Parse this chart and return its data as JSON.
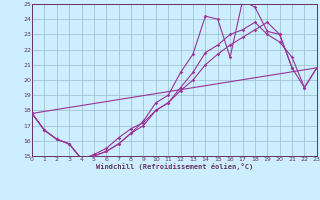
{
  "title": "",
  "xlabel": "Windchill (Refroidissement éolien,°C)",
  "bg_color": "#cceeff",
  "line_color": "#993399",
  "grid_color": "#99bbcc",
  "axis_color": "#663366",
  "xlim": [
    0,
    23
  ],
  "ylim": [
    15,
    25
  ],
  "xticks": [
    0,
    1,
    2,
    3,
    4,
    5,
    6,
    7,
    8,
    9,
    10,
    11,
    12,
    13,
    14,
    15,
    16,
    17,
    18,
    19,
    20,
    21,
    22,
    23
  ],
  "yticks": [
    15,
    16,
    17,
    18,
    19,
    20,
    21,
    22,
    23,
    24,
    25
  ],
  "lines": [
    {
      "x": [
        0,
        1,
        2,
        3,
        4,
        5,
        6,
        7,
        8,
        9,
        10,
        11,
        12,
        13,
        14,
        15,
        16,
        17,
        18,
        19,
        20,
        21
      ],
      "y": [
        17.8,
        16.7,
        16.1,
        15.8,
        14.8,
        15.0,
        15.3,
        15.8,
        16.5,
        17.3,
        18.5,
        19.0,
        20.5,
        21.7,
        24.2,
        24.0,
        21.5,
        25.2,
        24.8,
        23.2,
        23.0,
        20.8
      ]
    },
    {
      "x": [
        0,
        1,
        2,
        3,
        4,
        5,
        6,
        7,
        8,
        9,
        10,
        11,
        12,
        13,
        14,
        15,
        16,
        17,
        18,
        19,
        20,
        21,
        22,
        23
      ],
      "y": [
        17.8,
        16.7,
        16.1,
        15.8,
        14.8,
        15.0,
        15.3,
        15.8,
        16.5,
        17.0,
        18.0,
        18.5,
        19.5,
        20.5,
        21.8,
        22.3,
        23.0,
        23.3,
        23.8,
        23.0,
        22.5,
        21.5,
        19.5,
        20.8
      ]
    },
    {
      "x": [
        0,
        1,
        2,
        3,
        4,
        5,
        6,
        7,
        8,
        9,
        10,
        11,
        12,
        13,
        14,
        15,
        16,
        17,
        18,
        19,
        20,
        21,
        22,
        23
      ],
      "y": [
        17.8,
        16.7,
        16.1,
        15.8,
        14.8,
        15.1,
        15.5,
        16.2,
        16.8,
        17.2,
        18.0,
        18.5,
        19.3,
        20.0,
        21.0,
        21.7,
        22.3,
        22.8,
        23.3,
        23.8,
        23.0,
        20.8,
        19.5,
        20.8
      ]
    },
    {
      "x": [
        0,
        23
      ],
      "y": [
        17.8,
        20.8
      ]
    }
  ]
}
